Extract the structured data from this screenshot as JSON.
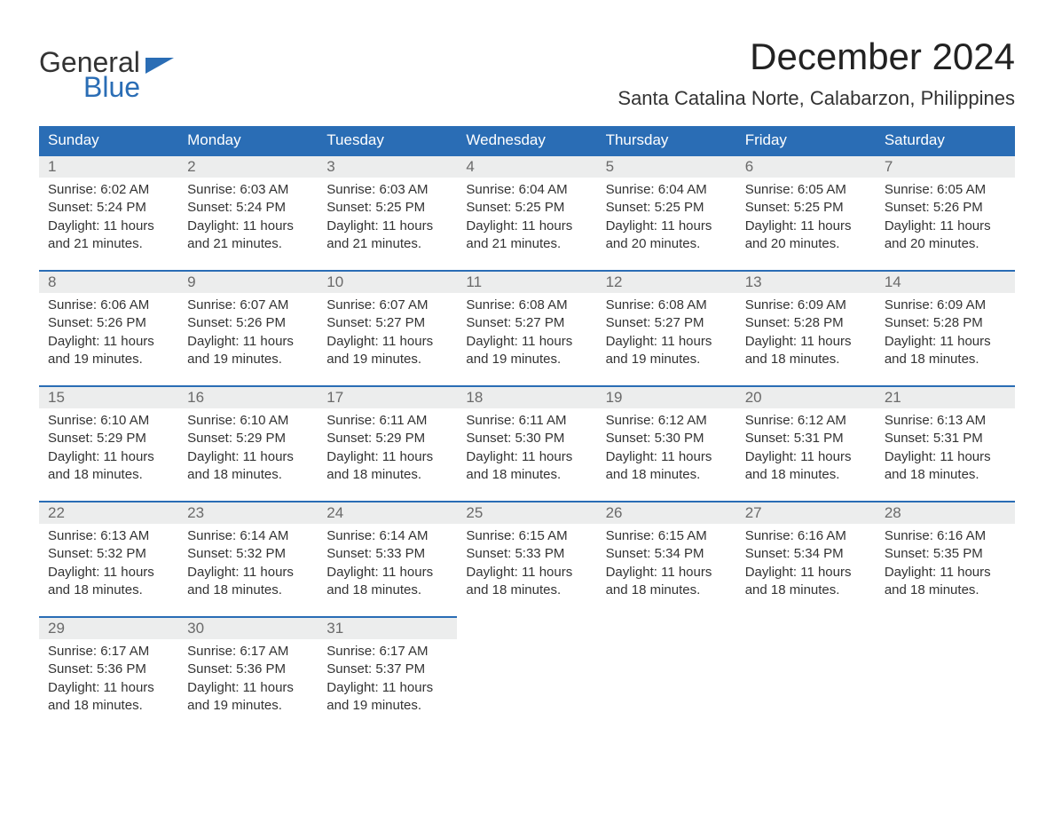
{
  "brand": {
    "word1": "General",
    "word2": "Blue"
  },
  "title": "December 2024",
  "location": "Santa Catalina Norte, Calabarzon, Philippines",
  "colors": {
    "accent": "#2a6db5",
    "header_text": "#ffffff",
    "daynum_bg": "#eceded",
    "daynum_text": "#6a6a6a",
    "body_text": "#333333",
    "page_bg": "#ffffff"
  },
  "day_headers": [
    "Sunday",
    "Monday",
    "Tuesday",
    "Wednesday",
    "Thursday",
    "Friday",
    "Saturday"
  ],
  "weeks": [
    [
      {
        "n": "1",
        "sr": "Sunrise: 6:02 AM",
        "ss": "Sunset: 5:24 PM",
        "d1": "Daylight: 11 hours",
        "d2": "and 21 minutes."
      },
      {
        "n": "2",
        "sr": "Sunrise: 6:03 AM",
        "ss": "Sunset: 5:24 PM",
        "d1": "Daylight: 11 hours",
        "d2": "and 21 minutes."
      },
      {
        "n": "3",
        "sr": "Sunrise: 6:03 AM",
        "ss": "Sunset: 5:25 PM",
        "d1": "Daylight: 11 hours",
        "d2": "and 21 minutes."
      },
      {
        "n": "4",
        "sr": "Sunrise: 6:04 AM",
        "ss": "Sunset: 5:25 PM",
        "d1": "Daylight: 11 hours",
        "d2": "and 21 minutes."
      },
      {
        "n": "5",
        "sr": "Sunrise: 6:04 AM",
        "ss": "Sunset: 5:25 PM",
        "d1": "Daylight: 11 hours",
        "d2": "and 20 minutes."
      },
      {
        "n": "6",
        "sr": "Sunrise: 6:05 AM",
        "ss": "Sunset: 5:25 PM",
        "d1": "Daylight: 11 hours",
        "d2": "and 20 minutes."
      },
      {
        "n": "7",
        "sr": "Sunrise: 6:05 AM",
        "ss": "Sunset: 5:26 PM",
        "d1": "Daylight: 11 hours",
        "d2": "and 20 minutes."
      }
    ],
    [
      {
        "n": "8",
        "sr": "Sunrise: 6:06 AM",
        "ss": "Sunset: 5:26 PM",
        "d1": "Daylight: 11 hours",
        "d2": "and 19 minutes."
      },
      {
        "n": "9",
        "sr": "Sunrise: 6:07 AM",
        "ss": "Sunset: 5:26 PM",
        "d1": "Daylight: 11 hours",
        "d2": "and 19 minutes."
      },
      {
        "n": "10",
        "sr": "Sunrise: 6:07 AM",
        "ss": "Sunset: 5:27 PM",
        "d1": "Daylight: 11 hours",
        "d2": "and 19 minutes."
      },
      {
        "n": "11",
        "sr": "Sunrise: 6:08 AM",
        "ss": "Sunset: 5:27 PM",
        "d1": "Daylight: 11 hours",
        "d2": "and 19 minutes."
      },
      {
        "n": "12",
        "sr": "Sunrise: 6:08 AM",
        "ss": "Sunset: 5:27 PM",
        "d1": "Daylight: 11 hours",
        "d2": "and 19 minutes."
      },
      {
        "n": "13",
        "sr": "Sunrise: 6:09 AM",
        "ss": "Sunset: 5:28 PM",
        "d1": "Daylight: 11 hours",
        "d2": "and 18 minutes."
      },
      {
        "n": "14",
        "sr": "Sunrise: 6:09 AM",
        "ss": "Sunset: 5:28 PM",
        "d1": "Daylight: 11 hours",
        "d2": "and 18 minutes."
      }
    ],
    [
      {
        "n": "15",
        "sr": "Sunrise: 6:10 AM",
        "ss": "Sunset: 5:29 PM",
        "d1": "Daylight: 11 hours",
        "d2": "and 18 minutes."
      },
      {
        "n": "16",
        "sr": "Sunrise: 6:10 AM",
        "ss": "Sunset: 5:29 PM",
        "d1": "Daylight: 11 hours",
        "d2": "and 18 minutes."
      },
      {
        "n": "17",
        "sr": "Sunrise: 6:11 AM",
        "ss": "Sunset: 5:29 PM",
        "d1": "Daylight: 11 hours",
        "d2": "and 18 minutes."
      },
      {
        "n": "18",
        "sr": "Sunrise: 6:11 AM",
        "ss": "Sunset: 5:30 PM",
        "d1": "Daylight: 11 hours",
        "d2": "and 18 minutes."
      },
      {
        "n": "19",
        "sr": "Sunrise: 6:12 AM",
        "ss": "Sunset: 5:30 PM",
        "d1": "Daylight: 11 hours",
        "d2": "and 18 minutes."
      },
      {
        "n": "20",
        "sr": "Sunrise: 6:12 AM",
        "ss": "Sunset: 5:31 PM",
        "d1": "Daylight: 11 hours",
        "d2": "and 18 minutes."
      },
      {
        "n": "21",
        "sr": "Sunrise: 6:13 AM",
        "ss": "Sunset: 5:31 PM",
        "d1": "Daylight: 11 hours",
        "d2": "and 18 minutes."
      }
    ],
    [
      {
        "n": "22",
        "sr": "Sunrise: 6:13 AM",
        "ss": "Sunset: 5:32 PM",
        "d1": "Daylight: 11 hours",
        "d2": "and 18 minutes."
      },
      {
        "n": "23",
        "sr": "Sunrise: 6:14 AM",
        "ss": "Sunset: 5:32 PM",
        "d1": "Daylight: 11 hours",
        "d2": "and 18 minutes."
      },
      {
        "n": "24",
        "sr": "Sunrise: 6:14 AM",
        "ss": "Sunset: 5:33 PM",
        "d1": "Daylight: 11 hours",
        "d2": "and 18 minutes."
      },
      {
        "n": "25",
        "sr": "Sunrise: 6:15 AM",
        "ss": "Sunset: 5:33 PM",
        "d1": "Daylight: 11 hours",
        "d2": "and 18 minutes."
      },
      {
        "n": "26",
        "sr": "Sunrise: 6:15 AM",
        "ss": "Sunset: 5:34 PM",
        "d1": "Daylight: 11 hours",
        "d2": "and 18 minutes."
      },
      {
        "n": "27",
        "sr": "Sunrise: 6:16 AM",
        "ss": "Sunset: 5:34 PM",
        "d1": "Daylight: 11 hours",
        "d2": "and 18 minutes."
      },
      {
        "n": "28",
        "sr": "Sunrise: 6:16 AM",
        "ss": "Sunset: 5:35 PM",
        "d1": "Daylight: 11 hours",
        "d2": "and 18 minutes."
      }
    ],
    [
      {
        "n": "29",
        "sr": "Sunrise: 6:17 AM",
        "ss": "Sunset: 5:36 PM",
        "d1": "Daylight: 11 hours",
        "d2": "and 18 minutes."
      },
      {
        "n": "30",
        "sr": "Sunrise: 6:17 AM",
        "ss": "Sunset: 5:36 PM",
        "d1": "Daylight: 11 hours",
        "d2": "and 19 minutes."
      },
      {
        "n": "31",
        "sr": "Sunrise: 6:17 AM",
        "ss": "Sunset: 5:37 PM",
        "d1": "Daylight: 11 hours",
        "d2": "and 19 minutes."
      },
      null,
      null,
      null,
      null
    ]
  ]
}
